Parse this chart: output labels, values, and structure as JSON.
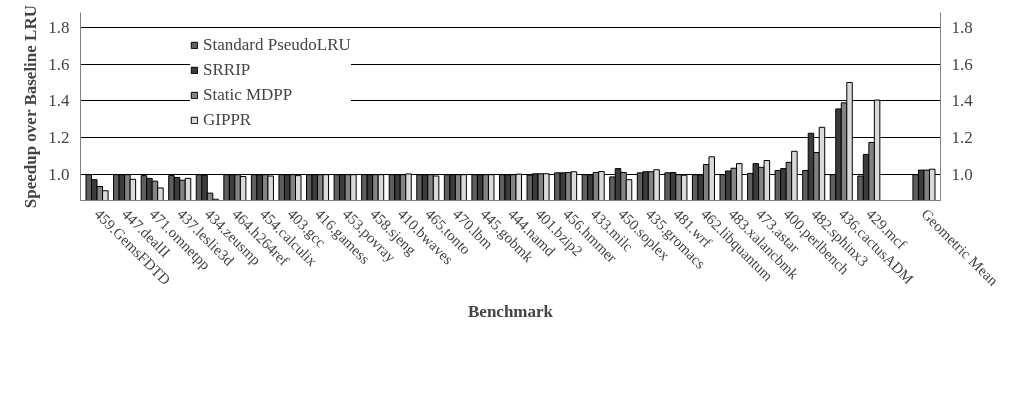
{
  "chart_data": {
    "type": "bar",
    "xlabel": "Benchmark",
    "ylabel": "Speedup over Baseline LRU",
    "categories": [
      "459.GemsFDTD",
      "447.dealII",
      "471.omnetpp",
      "437.leslie3d",
      "434.zeusmp",
      "464.h264ref",
      "454.calculix",
      "403.gcc",
      "416.gamess",
      "453.povray",
      "458.sjeng",
      "410.bwaves",
      "465.tonto",
      "470.lbm",
      "445.gobmk",
      "444.namd",
      "401.bzip2",
      "456.hmmer",
      "433.milc",
      "450.soplex",
      "435.gromacs",
      "481.wrf",
      "462.libquantum",
      "483.xalancbmk",
      "473.astar",
      "400.perlbench",
      "482.sphinx3",
      "436.cactusADM",
      "429.mcf",
      null,
      "Geometric Mean"
    ],
    "series": [
      {
        "name": "Standard PseudoLRU",
        "color": "#5f5f5f",
        "values": [
          1.0,
          1.0,
          0.995,
          0.995,
          1.0,
          1.0,
          1.0,
          1.0,
          1.0,
          1.0,
          1.0,
          1.0,
          1.0,
          1.0,
          1.0,
          1.0,
          0.998,
          1.01,
          1.0,
          0.988,
          1.01,
          1.01,
          1.0,
          1.0,
          1.007,
          1.023,
          1.023,
          1.0,
          0.993,
          null,
          1.0
        ]
      },
      {
        "name": "SRRIP",
        "color": "#3c3c3c",
        "values": [
          0.973,
          1.0,
          0.98,
          0.985,
          0.997,
          1.0,
          1.0,
          1.0,
          1.0,
          1.0,
          1.0,
          1.0,
          1.0,
          1.0,
          1.0,
          1.0,
          1.005,
          1.01,
          1.0,
          1.033,
          1.016,
          1.012,
          1.0,
          1.02,
          1.06,
          1.033,
          1.225,
          1.357,
          1.11,
          null,
          1.025
        ]
      },
      {
        "name": "Static MDPP",
        "color": "#838383",
        "values": [
          0.936,
          1.0,
          0.965,
          0.97,
          0.9,
          1.0,
          1.0,
          1.0,
          1.0,
          1.0,
          1.0,
          1.0,
          1.0,
          1.0,
          1.0,
          1.0,
          1.005,
          1.012,
          1.012,
          1.012,
          1.016,
          1.0,
          1.055,
          1.035,
          1.04,
          1.067,
          1.12,
          1.39,
          1.175,
          null,
          1.025
        ]
      },
      {
        "name": "GIPPR",
        "color": "#dadada",
        "values": [
          0.913,
          0.975,
          0.928,
          0.98,
          0.867,
          0.99,
          0.993,
          0.995,
          1.0,
          1.0,
          1.0,
          1.004,
          0.993,
          1.0,
          1.0,
          1.003,
          1.005,
          1.016,
          1.017,
          0.973,
          1.027,
          0.997,
          1.097,
          1.06,
          1.077,
          1.127,
          1.257,
          1.5,
          1.405,
          null,
          1.03
        ]
      }
    ],
    "ylim": [
      0.86,
      1.88
    ],
    "yticks": [
      {
        "value": 1.0,
        "label": "1.0"
      },
      {
        "value": 1.2,
        "label": "1.2"
      },
      {
        "value": 1.4,
        "label": "1.4"
      },
      {
        "value": 1.6,
        "label": "1.6"
      },
      {
        "value": 1.8,
        "label": "1.8"
      }
    ],
    "y2lim": [
      0.86,
      1.88
    ],
    "y2ticks": [
      {
        "value": 1.0,
        "label": "1.0"
      },
      {
        "value": 1.2,
        "label": "1.2"
      },
      {
        "value": 1.4,
        "label": "1.4"
      },
      {
        "value": 1.6,
        "label": "1.6"
      },
      {
        "value": 1.8,
        "label": "1.8"
      }
    ],
    "grid": "y",
    "legend": "top left"
  }
}
